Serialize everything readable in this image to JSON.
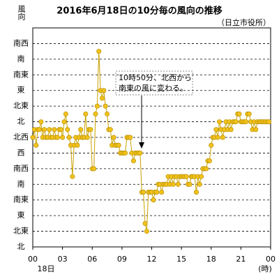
{
  "chart_data": {
    "type": "line",
    "title": "2016年6月18日の10分毎の風向の推移",
    "subtitle": "（日立市役所）",
    "y_label": "風向",
    "x_label": "(時)",
    "x_date_label": "18日",
    "annotation": [
      "10時50分、北西から",
      "南東の風に変わる。"
    ],
    "xlim": [
      0,
      1440
    ],
    "xticks": [
      {
        "value": 0,
        "label": "00"
      },
      {
        "value": 180,
        "label": "03"
      },
      {
        "value": 360,
        "label": "06"
      },
      {
        "value": 540,
        "label": "09"
      },
      {
        "value": 720,
        "label": "12"
      },
      {
        "value": 900,
        "label": "15"
      },
      {
        "value": 1080,
        "label": "18"
      },
      {
        "value": 1260,
        "label": "21"
      },
      {
        "value": 1440,
        "label": "00"
      }
    ],
    "ylim": [
      0,
      14
    ],
    "yticks": [
      {
        "value": 0,
        "label": "北"
      },
      {
        "value": 1,
        "label": "北東"
      },
      {
        "value": 2,
        "label": "東"
      },
      {
        "value": 3,
        "label": "南東"
      },
      {
        "value": 4,
        "label": "南"
      },
      {
        "value": 5,
        "label": "南西"
      },
      {
        "value": 6,
        "label": "西"
      },
      {
        "value": 7,
        "label": "北西"
      },
      {
        "value": 8,
        "label": "北"
      },
      {
        "value": 9,
        "label": "北東"
      },
      {
        "value": 10,
        "label": "東"
      },
      {
        "value": 11,
        "label": "南東"
      },
      {
        "value": 12,
        "label": "南"
      },
      {
        "value": 13,
        "label": "南西"
      }
    ],
    "grid": true,
    "series": [
      {
        "color": "#f2c21b",
        "x": [
          0,
          10,
          20,
          30,
          40,
          50,
          60,
          70,
          80,
          90,
          100,
          110,
          120,
          130,
          140,
          150,
          160,
          170,
          180,
          190,
          200,
          210,
          220,
          230,
          240,
          250,
          260,
          270,
          280,
          290,
          300,
          310,
          320,
          330,
          340,
          350,
          360,
          370,
          380,
          390,
          400,
          410,
          420,
          430,
          440,
          450,
          460,
          470,
          480,
          490,
          500,
          510,
          520,
          530,
          540,
          550,
          560,
          570,
          580,
          590,
          600,
          610,
          620,
          630,
          640,
          650,
          660,
          670,
          680,
          690,
          700,
          710,
          720,
          730,
          740,
          750,
          760,
          770,
          780,
          790,
          800,
          810,
          820,
          830,
          840,
          850,
          860,
          870,
          880,
          890,
          900,
          910,
          920,
          930,
          940,
          950,
          960,
          970,
          980,
          990,
          1000,
          1010,
          1020,
          1030,
          1040,
          1050,
          1060,
          1070,
          1080,
          1090,
          1100,
          1110,
          1120,
          1130,
          1140,
          1150,
          1160,
          1170,
          1180,
          1190,
          1200,
          1210,
          1220,
          1230,
          1240,
          1250,
          1260,
          1270,
          1280,
          1290,
          1300,
          1310,
          1320,
          1330,
          1340,
          1350,
          1360,
          1370,
          1380,
          1390,
          1400,
          1410,
          1420,
          1430
        ],
        "values": [
          7,
          7.5,
          6.5,
          7.5,
          7.5,
          8,
          7,
          7.5,
          7,
          7,
          7.5,
          7,
          7,
          7.5,
          7,
          7,
          7.5,
          7.5,
          7,
          8,
          8.5,
          7.5,
          7,
          6.5,
          4.5,
          6.5,
          7,
          6.5,
          7,
          7.5,
          7,
          7,
          8.5,
          7,
          7.5,
          7.5,
          5,
          5,
          8.5,
          9,
          12.5,
          10,
          9.5,
          10,
          9,
          8.5,
          7.5,
          7.5,
          6.5,
          7,
          6.5,
          6.5,
          6.5,
          6,
          6,
          6,
          6,
          7,
          7,
          7,
          6,
          5.5,
          6,
          6,
          6,
          6,
          3.5,
          3.5,
          1.5,
          1,
          3.5,
          3.5,
          3.5,
          3,
          3.5,
          3.5,
          4,
          4,
          3.5,
          4,
          4,
          4,
          4.5,
          4,
          4.5,
          4,
          4.5,
          4.5,
          4,
          4.5,
          4.5,
          4.5,
          4.5,
          4.5,
          4,
          4,
          4.5,
          4.5,
          4.5,
          3.5,
          4.5,
          4,
          4.5,
          5,
          5,
          5,
          5.5,
          5.5,
          6.5,
          7,
          7,
          7.5,
          7,
          8,
          7.5,
          7,
          7.5,
          8,
          7.5,
          8,
          7.5,
          8,
          8,
          8,
          8.5,
          8.5,
          8,
          8,
          8,
          8,
          8.5,
          8.5,
          8,
          7.5,
          8,
          7.5,
          8,
          8,
          8,
          8,
          8,
          8,
          8,
          8
        ]
      }
    ]
  }
}
